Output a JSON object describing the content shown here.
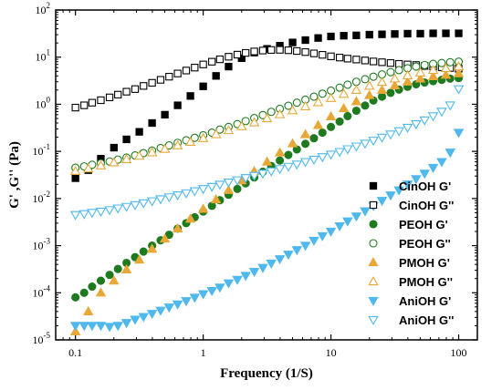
{
  "chart_data": {
    "type": "scatter",
    "xlabel": "Frequency (1/S)",
    "ylabel": "G' ,G'' (Pa)",
    "xscale": "log",
    "yscale": "log",
    "xlim": [
      0.07,
      140
    ],
    "ylim": [
      1e-05,
      100
    ],
    "x_ticks": [
      {
        "value": 0.1,
        "label": "0.1"
      },
      {
        "value": 1,
        "label": "1"
      },
      {
        "value": 10,
        "label": "10"
      },
      {
        "value": 100,
        "label": "100"
      }
    ],
    "y_ticks": [
      {
        "value": 100,
        "base": "10",
        "exp": "2"
      },
      {
        "value": 10,
        "base": "10",
        "exp": "1"
      },
      {
        "value": 1,
        "base": "10",
        "exp": "0"
      },
      {
        "value": 0.1,
        "base": "10",
        "exp": "-1"
      },
      {
        "value": 0.01,
        "base": "10",
        "exp": "-2"
      },
      {
        "value": 0.001,
        "base": "10",
        "exp": "-3"
      },
      {
        "value": 0.0001,
        "base": "10",
        "exp": "-4"
      },
      {
        "value": 1e-05,
        "base": "10",
        "exp": "-5"
      }
    ],
    "legend_position": "bottom-right",
    "grid": false,
    "series": [
      {
        "name": "CinOH G'",
        "marker": "square",
        "filled": true,
        "color": "#000000",
        "x": [
          0.1,
          0.126,
          0.158,
          0.2,
          0.251,
          0.316,
          0.398,
          0.501,
          0.631,
          0.794,
          1,
          1.26,
          1.58,
          2,
          2.51,
          3.16,
          3.98,
          5.01,
          6.31,
          7.94,
          10,
          12.6,
          15.8,
          20,
          25.1,
          31.6,
          39.8,
          50.1,
          63.1,
          79.4,
          100
        ],
        "y": [
          0.027,
          0.04,
          0.07,
          0.12,
          0.18,
          0.26,
          0.4,
          0.6,
          0.95,
          1.5,
          2.4,
          4.0,
          6.3,
          9.5,
          12.5,
          15.0,
          17.5,
          20.5,
          23.0,
          25.5,
          27.5,
          28.5,
          29.0,
          30.0,
          30.5,
          31.0,
          31.5,
          31.5,
          32.0,
          32.0,
          32.0
        ]
      },
      {
        "name": "CinOH G''",
        "marker": "square",
        "filled": false,
        "color": "#000000",
        "x": [
          0.1,
          0.117,
          0.135,
          0.158,
          0.185,
          0.215,
          0.251,
          0.293,
          0.341,
          0.398,
          0.464,
          0.541,
          0.631,
          0.736,
          0.858,
          1,
          1.17,
          1.35,
          1.58,
          1.85,
          2.15,
          2.51,
          2.93,
          3.41,
          3.98,
          4.64,
          5.41,
          6.31,
          7.36,
          8.58,
          10,
          11.7,
          13.5,
          15.8,
          18.5,
          21.5,
          25.1,
          29.3,
          34.1,
          39.8,
          46.4,
          54.1,
          63.1,
          73.6,
          85.8,
          100
        ],
        "y": [
          0.85,
          0.95,
          1.08,
          1.22,
          1.4,
          1.6,
          1.85,
          2.1,
          2.45,
          2.85,
          3.3,
          3.85,
          4.5,
          5.2,
          6.0,
          7.0,
          8.0,
          9.0,
          10.2,
          11.3,
          12.3,
          13.2,
          13.8,
          14.2,
          14.3,
          14.0,
          13.5,
          12.8,
          12.0,
          11.2,
          10.4,
          9.8,
          9.3,
          8.9,
          8.5,
          8.1,
          7.8,
          7.5,
          7.2,
          7.0,
          6.8,
          6.5,
          6.3,
          6.1,
          5.9,
          5.7
        ]
      },
      {
        "name": "PEOH G'",
        "marker": "circle",
        "filled": true,
        "color": "#1f7a1f",
        "x": [
          0.1,
          0.117,
          0.135,
          0.158,
          0.185,
          0.215,
          0.251,
          0.293,
          0.341,
          0.398,
          0.464,
          0.541,
          0.631,
          0.736,
          0.858,
          1,
          1.17,
          1.35,
          1.58,
          1.85,
          2.15,
          2.51,
          2.93,
          3.41,
          3.98,
          4.64,
          5.41,
          6.31,
          7.36,
          8.58,
          10,
          11.7,
          13.5,
          15.8,
          18.5,
          21.5,
          25.1,
          29.3,
          34.1,
          39.8,
          46.4,
          54.1,
          63.1,
          73.6,
          85.8,
          100
        ],
        "y": [
          8e-05,
          0.0001,
          0.000135,
          0.00018,
          0.00024,
          0.00032,
          0.00043,
          0.00057,
          0.00075,
          0.001,
          0.0013,
          0.0017,
          0.0023,
          0.003,
          0.004,
          0.0053,
          0.007,
          0.0092,
          0.012,
          0.016,
          0.021,
          0.028,
          0.037,
          0.049,
          0.064,
          0.084,
          0.11,
          0.145,
          0.19,
          0.25,
          0.33,
          0.43,
          0.56,
          0.73,
          0.94,
          1.2,
          1.45,
          1.75,
          2.05,
          2.35,
          2.65,
          2.9,
          3.1,
          3.3,
          3.5,
          3.6
        ]
      },
      {
        "name": "PEOH G''",
        "marker": "circle",
        "filled": false,
        "color": "#1f7a1f",
        "x": [
          0.1,
          0.117,
          0.135,
          0.158,
          0.185,
          0.215,
          0.251,
          0.293,
          0.341,
          0.398,
          0.464,
          0.541,
          0.631,
          0.736,
          0.858,
          1,
          1.17,
          1.35,
          1.58,
          1.85,
          2.15,
          2.51,
          2.93,
          3.41,
          3.98,
          4.64,
          5.41,
          6.31,
          7.36,
          8.58,
          10,
          11.7,
          13.5,
          15.8,
          18.5,
          21.5,
          25.1,
          29.3,
          34.1,
          39.8,
          46.4,
          54.1,
          63.1,
          73.6,
          85.8,
          100
        ],
        "y": [
          0.045,
          0.048,
          0.052,
          0.056,
          0.061,
          0.067,
          0.074,
          0.082,
          0.092,
          0.104,
          0.118,
          0.134,
          0.152,
          0.172,
          0.195,
          0.22,
          0.25,
          0.29,
          0.33,
          0.38,
          0.44,
          0.51,
          0.59,
          0.69,
          0.8,
          0.93,
          1.08,
          1.25,
          1.45,
          1.68,
          1.95,
          2.25,
          2.6,
          3.0,
          3.4,
          3.85,
          4.3,
          4.8,
          5.3,
          5.8,
          6.3,
          6.8,
          7.2,
          7.5,
          7.8,
          8.0
        ]
      },
      {
        "name": "PMOH G'",
        "marker": "triangle-up",
        "filled": true,
        "color": "#e8a838",
        "x": [
          0.1,
          0.126,
          0.158,
          0.2,
          0.251,
          0.316,
          0.398,
          0.501,
          0.631,
          0.794,
          1,
          1.26,
          1.58,
          2,
          2.51,
          3.16,
          3.98,
          5.01,
          6.31,
          7.94,
          10,
          12.6,
          15.8,
          20,
          25.1,
          31.6,
          39.8,
          50.1,
          63.1,
          79.4,
          100
        ],
        "y": [
          1.5e-05,
          4e-05,
          0.0001,
          0.00018,
          0.00031,
          0.0005,
          0.00085,
          0.0014,
          0.0023,
          0.0037,
          0.006,
          0.0095,
          0.015,
          0.024,
          0.038,
          0.06,
          0.094,
          0.147,
          0.23,
          0.36,
          0.55,
          0.82,
          1.15,
          1.55,
          2.0,
          2.5,
          3.0,
          3.5,
          3.9,
          4.2,
          4.5
        ]
      },
      {
        "name": "PMOH G''",
        "marker": "triangle-up",
        "filled": false,
        "color": "#e8a838",
        "x": [
          0.1,
          0.126,
          0.158,
          0.2,
          0.251,
          0.316,
          0.398,
          0.501,
          0.631,
          0.794,
          1,
          1.26,
          1.58,
          2,
          2.51,
          3.16,
          3.98,
          5.01,
          6.31,
          7.94,
          10,
          12.6,
          15.8,
          20,
          25.1,
          31.6,
          39.8,
          50.1,
          63.1,
          79.4,
          100
        ],
        "y": [
          0.038,
          0.043,
          0.05,
          0.058,
          0.068,
          0.08,
          0.095,
          0.112,
          0.133,
          0.158,
          0.19,
          0.23,
          0.28,
          0.34,
          0.41,
          0.5,
          0.61,
          0.74,
          0.9,
          1.1,
          1.35,
          1.65,
          2.0,
          2.45,
          2.95,
          3.5,
          4.1,
          4.7,
          5.3,
          5.8,
          6.3
        ]
      },
      {
        "name": "AniOH G'",
        "marker": "triangle-down",
        "filled": true,
        "color": "#4fb8ec",
        "x": [
          0.1,
          0.117,
          0.135,
          0.158,
          0.185,
          0.215,
          0.251,
          0.293,
          0.341,
          0.398,
          0.464,
          0.541,
          0.631,
          0.736,
          0.858,
          1,
          1.17,
          1.35,
          1.58,
          1.85,
          2.15,
          2.51,
          2.93,
          3.41,
          3.98,
          4.64,
          5.41,
          6.31,
          7.36,
          8.58,
          10,
          11.7,
          13.5,
          15.8,
          18.5,
          21.5,
          25.1,
          29.3,
          34.1,
          39.8,
          46.4,
          54.1,
          63.1,
          73.6,
          85.8,
          100
        ],
        "y": [
          2e-05,
          2e-05,
          2e-05,
          2e-05,
          1.9e-05,
          2e-05,
          2.3e-05,
          2.7e-05,
          3.1e-05,
          3.6e-05,
          4.2e-05,
          4.9e-05,
          5.7e-05,
          6.7e-05,
          7.9e-05,
          9.4e-05,
          0.00011,
          0.00013,
          0.00016,
          0.00019,
          0.00023,
          0.00028,
          0.00034,
          0.00042,
          0.00052,
          0.00065,
          0.00081,
          0.001,
          0.00128,
          0.0016,
          0.002,
          0.0026,
          0.0033,
          0.0042,
          0.0054,
          0.007,
          0.009,
          0.0117,
          0.015,
          0.02,
          0.026,
          0.034,
          0.045,
          0.06,
          0.095,
          0.25
        ]
      },
      {
        "name": "AniOH G''",
        "marker": "triangle-down",
        "filled": false,
        "color": "#4fb8ec",
        "x": [
          0.1,
          0.117,
          0.135,
          0.158,
          0.185,
          0.215,
          0.251,
          0.293,
          0.341,
          0.398,
          0.464,
          0.541,
          0.631,
          0.736,
          0.858,
          1,
          1.17,
          1.35,
          1.58,
          1.85,
          2.15,
          2.51,
          2.93,
          3.41,
          3.98,
          4.64,
          5.41,
          6.31,
          7.36,
          8.58,
          10,
          11.7,
          13.5,
          15.8,
          18.5,
          21.5,
          25.1,
          29.3,
          34.1,
          39.8,
          46.4,
          54.1,
          63.1,
          73.6,
          85.8,
          100
        ],
        "y": [
          0.0045,
          0.0047,
          0.005,
          0.0053,
          0.0057,
          0.0062,
          0.0067,
          0.0073,
          0.008,
          0.0088,
          0.0097,
          0.0107,
          0.0118,
          0.013,
          0.0144,
          0.016,
          0.0178,
          0.0198,
          0.022,
          0.0245,
          0.0273,
          0.0305,
          0.034,
          0.038,
          0.0425,
          0.0475,
          0.053,
          0.06,
          0.067,
          0.076,
          0.086,
          0.098,
          0.112,
          0.128,
          0.147,
          0.17,
          0.197,
          0.23,
          0.27,
          0.32,
          0.38,
          0.46,
          0.56,
          0.7,
          0.95,
          2.1
        ]
      }
    ]
  }
}
